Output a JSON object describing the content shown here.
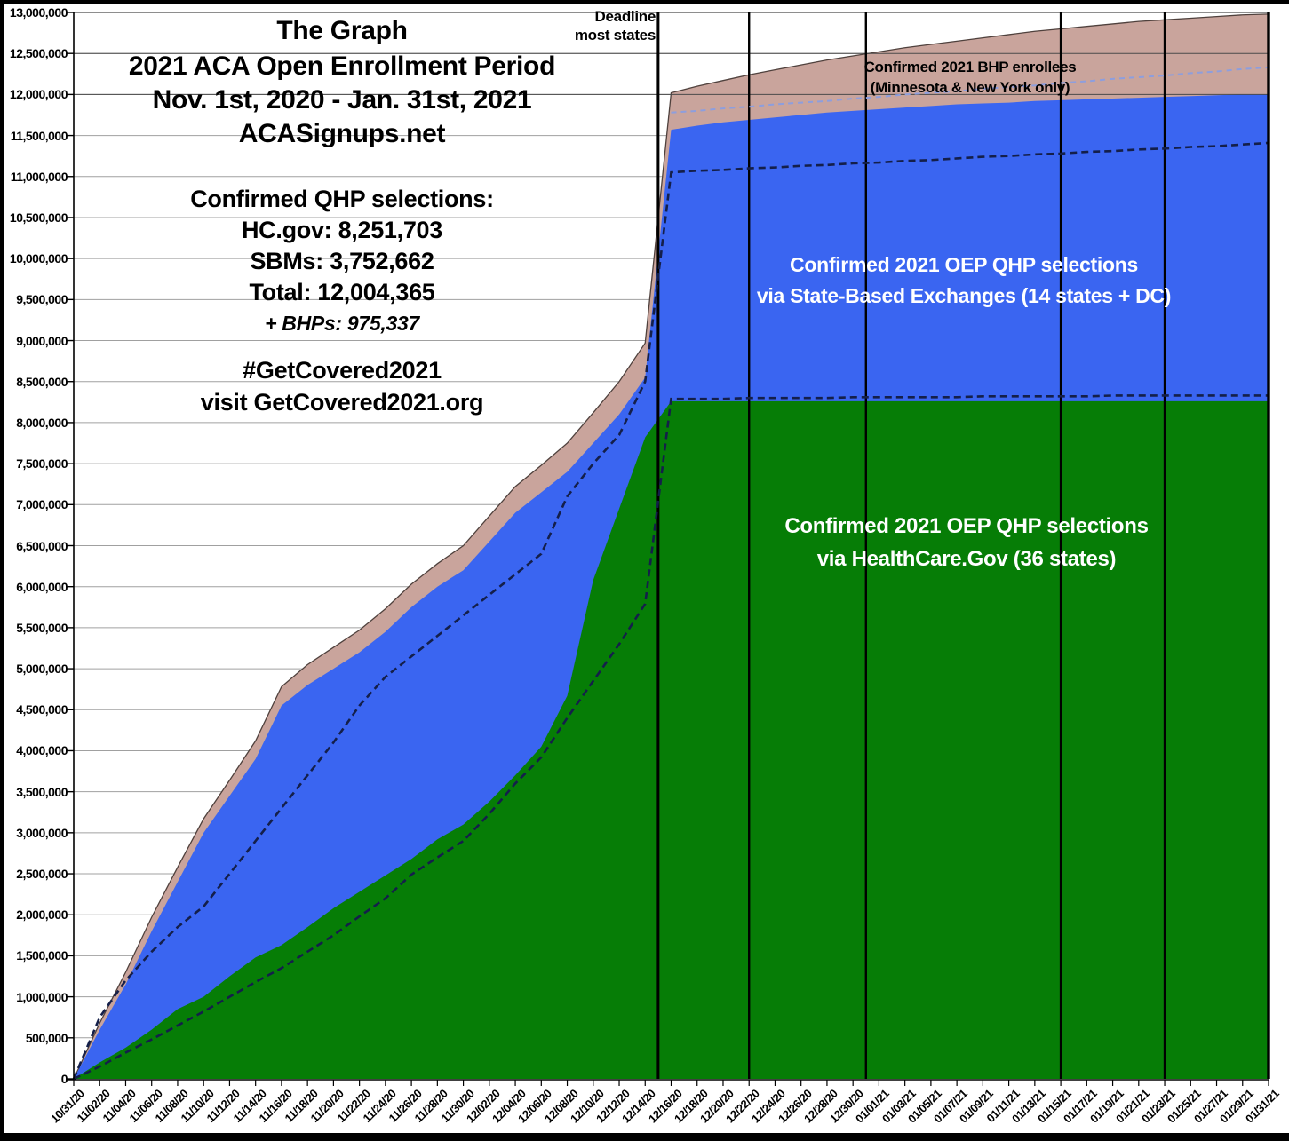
{
  "title": {
    "line1": "The Graph",
    "line2": "2021 ACA Open Enrollment Period",
    "line3": "Nov. 1st, 2020 - Jan. 31st, 2021",
    "line4": "ACASignups.net"
  },
  "stats": {
    "heading": "Confirmed QHP selections:",
    "hcgov": "HC.gov: 8,251,703",
    "sbms": "SBMs: 3,752,662",
    "total": "Total: 12,004,365",
    "bhps": "+ BHPs: 975,337"
  },
  "promo": {
    "line1": "#GetCovered2021",
    "line2": "visit GetCovered2021.org"
  },
  "annotations": {
    "deadline_line1": "Deadline",
    "deadline_line2": "most states",
    "bhp_line1": "Confirmed 2021 BHP enrollees",
    "bhp_line2": "(Minnesota & New York only)",
    "sbm_line1": "Confirmed 2021 OEP QHP selections",
    "sbm_line2": "via State-Based Exchanges (14 states + DC)",
    "hcgov_line1": "Confirmed 2021 OEP QHP selections",
    "hcgov_line2": "via HealthCare.Gov (36 states)"
  },
  "colors": {
    "hcgov_area": "#067d06",
    "sbm_area": "#3a65f1",
    "bhp_area": "#c9a49c",
    "bhp_area_edge": "#4f413d",
    "dashed_navy": "#141f4a",
    "dashed_periwinkle": "#8d9ede",
    "gridline": "#a0a0a0",
    "gridline_dark": "#4a4a4a",
    "axis": "#000000"
  },
  "chart_data": {
    "type": "area",
    "title": "The Graph — 2021 ACA Open Enrollment Period, Nov. 1st 2020 - Jan. 31st 2021",
    "x_days_per_point": 2,
    "x_start_label": "10/31/20",
    "x_tick_labels": [
      "10/31/20",
      "11/02/20",
      "11/04/20",
      "11/06/20",
      "11/08/20",
      "11/10/20",
      "11/12/20",
      "11/14/20",
      "11/16/20",
      "11/18/20",
      "11/20/20",
      "11/22/20",
      "11/24/20",
      "11/26/20",
      "11/28/20",
      "11/30/20",
      "12/02/20",
      "12/04/20",
      "12/06/20",
      "12/08/20",
      "12/10/20",
      "12/12/20",
      "12/14/20",
      "12/16/20",
      "12/18/20",
      "12/20/20",
      "12/22/20",
      "12/24/20",
      "12/26/20",
      "12/28/20",
      "12/30/20",
      "01/01/21",
      "01/03/21",
      "01/05/21",
      "01/07/21",
      "01/09/21",
      "01/11/21",
      "01/13/21",
      "01/15/21",
      "01/17/21",
      "01/19/21",
      "01/21/21",
      "01/23/21",
      "01/25/21",
      "01/27/21",
      "01/29/21",
      "01/31/21"
    ],
    "y_min": 0,
    "y_max": 13000000,
    "y_step": 500000,
    "y_tick_labels": [
      "0",
      "500,000",
      "1,000,000",
      "1,500,000",
      "2,000,000",
      "2,500,000",
      "3,000,000",
      "3,500,000",
      "4,000,000",
      "4,500,000",
      "5,000,000",
      "5,500,000",
      "6,000,000",
      "6,500,000",
      "7,000,000",
      "7,500,000",
      "8,000,000",
      "8,500,000",
      "9,000,000",
      "9,500,000",
      "10,000,000",
      "10,500,000",
      "11,000,000",
      "11,500,000",
      "12,000,000",
      "12,500,000",
      "13,000,000"
    ],
    "values_unit": "millions",
    "series_are_cumulative_totals": true,
    "series": [
      {
        "id": "hcgov_qhp",
        "label": "Confirmed 2021 OEP QHP selections via HealthCare.Gov (36 states)",
        "final_value": 8251703,
        "values": [
          0,
          0.2,
          0.38,
          0.6,
          0.85,
          1.0,
          1.25,
          1.48,
          1.63,
          1.85,
          2.08,
          2.28,
          2.48,
          2.68,
          2.92,
          3.1,
          3.38,
          3.7,
          4.05,
          4.67,
          6.08,
          6.95,
          7.82,
          8.26,
          8.26,
          8.26,
          8.26,
          8.26,
          8.26,
          8.26,
          8.26,
          8.26,
          8.26,
          8.26,
          8.26,
          8.26,
          8.26,
          8.26,
          8.26,
          8.26,
          8.26,
          8.26,
          8.26,
          8.26,
          8.26,
          8.26,
          8.26
        ]
      },
      {
        "id": "total_qhp",
        "label": "Confirmed 2021 OEP QHP selections via State-Based Exchanges (14 states + DC)",
        "final_value": 12004365,
        "values": [
          0,
          0.6,
          1.15,
          1.8,
          2.4,
          3.0,
          3.45,
          3.9,
          4.55,
          4.8,
          5.0,
          5.2,
          5.45,
          5.75,
          6.0,
          6.2,
          6.55,
          6.9,
          7.15,
          7.4,
          7.75,
          8.1,
          8.55,
          11.57,
          11.62,
          11.66,
          11.69,
          11.72,
          11.75,
          11.78,
          11.8,
          11.82,
          11.84,
          11.86,
          11.88,
          11.89,
          11.9,
          11.92,
          11.93,
          11.94,
          11.95,
          11.96,
          11.97,
          11.98,
          11.99,
          12.0,
          12.004
        ]
      },
      {
        "id": "total_qhp_plus_bhp",
        "label": "Confirmed 2021 BHP enrollees (Minnesota & New York only)",
        "final_value": 12979702,
        "values": [
          0,
          0.68,
          1.3,
          1.97,
          2.58,
          3.17,
          3.64,
          4.12,
          4.78,
          5.05,
          5.26,
          5.47,
          5.73,
          6.03,
          6.28,
          6.5,
          6.86,
          7.22,
          7.48,
          7.75,
          8.12,
          8.5,
          8.97,
          12.02,
          12.1,
          12.17,
          12.24,
          12.3,
          12.36,
          12.42,
          12.47,
          12.52,
          12.57,
          12.61,
          12.65,
          12.69,
          12.73,
          12.77,
          12.8,
          12.83,
          12.86,
          12.89,
          12.91,
          12.93,
          12.95,
          12.97,
          12.98
        ]
      }
    ],
    "dashed_lines": [
      {
        "id": "dashed-navy-lower",
        "style": "navy",
        "start_day": 0,
        "values": [
          0,
          0.15,
          0.32,
          0.48,
          0.65,
          0.82,
          1.0,
          1.18,
          1.35,
          1.55,
          1.75,
          1.98,
          2.2,
          2.49,
          2.7,
          2.9,
          3.23,
          3.6,
          3.92,
          4.4,
          4.85,
          5.3,
          5.79,
          8.29,
          8.29,
          8.29,
          8.3,
          8.3,
          8.3,
          8.3,
          8.31,
          8.31,
          8.31,
          8.31,
          8.31,
          8.32,
          8.32,
          8.32,
          8.32,
          8.32,
          8.33,
          8.33,
          8.33,
          8.33,
          8.33,
          8.33,
          8.33
        ]
      },
      {
        "id": "dashed-navy-upper",
        "style": "navy",
        "start_day": 0,
        "values": [
          0,
          0.75,
          1.2,
          1.55,
          1.85,
          2.1,
          2.5,
          2.9,
          3.3,
          3.7,
          4.1,
          4.55,
          4.9,
          5.15,
          5.4,
          5.65,
          5.9,
          6.15,
          6.4,
          7.1,
          7.5,
          7.85,
          8.5,
          11.05,
          11.07,
          11.08,
          11.1,
          11.11,
          11.13,
          11.14,
          11.16,
          11.17,
          11.19,
          11.2,
          11.22,
          11.24,
          11.25,
          11.27,
          11.28,
          11.3,
          11.31,
          11.33,
          11.34,
          11.36,
          11.37,
          11.39,
          11.41
        ]
      },
      {
        "id": "dashed-periwinkle-bhp",
        "style": "periwinkle",
        "start_day": 46,
        "values": [
          11.78,
          11.8,
          11.83,
          11.85,
          11.88,
          11.9,
          11.92,
          11.95,
          11.97,
          12.0,
          12.02,
          12.04,
          12.07,
          12.09,
          12.11,
          12.14,
          12.16,
          12.19,
          12.21,
          12.23,
          12.26,
          12.28,
          12.31,
          12.33
        ]
      }
    ],
    "deadline_vlines": [
      {
        "date": "12/15/20",
        "day": 45,
        "labeled": true
      },
      {
        "date": "12/22/20",
        "day": 52,
        "labeled": false
      },
      {
        "date": "12/31/20",
        "day": 61,
        "labeled": false
      },
      {
        "date": "01/15/21",
        "day": 76,
        "labeled": false
      },
      {
        "date": "01/23/21",
        "day": 84,
        "labeled": false
      }
    ],
    "gridlines_over_fill_at_millions": [
      12,
      12.5
    ],
    "legend_position": "labels-inside-areas",
    "grid": true
  }
}
